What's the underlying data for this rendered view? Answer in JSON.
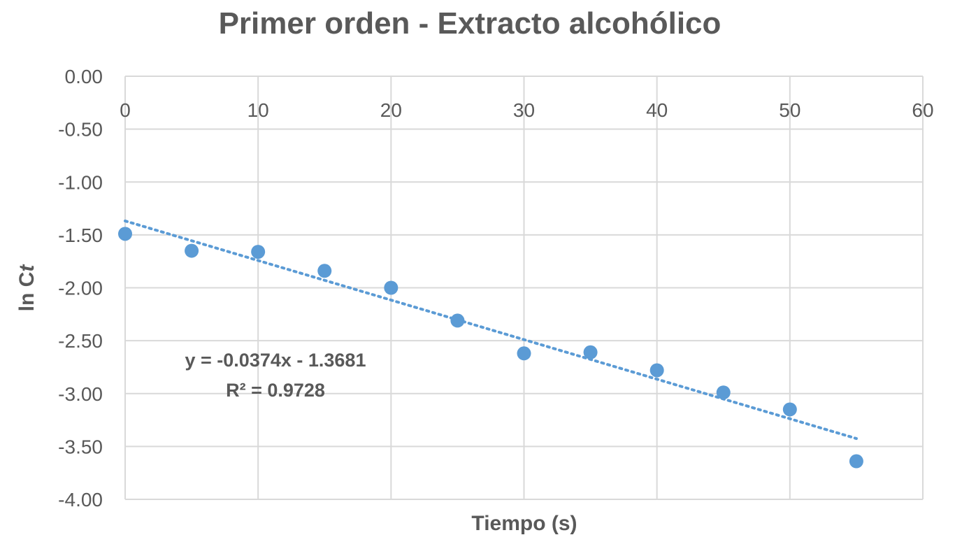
{
  "chart_data": {
    "type": "scatter",
    "title": "Primer orden - Extracto alcohólico",
    "xlabel": "Tiempo (s)",
    "ylabel_main": "ln C",
    "ylabel_italic": "t",
    "xlim": [
      0,
      60
    ],
    "ylim": [
      -4,
      0
    ],
    "x_ticks": [
      "0",
      "10",
      "20",
      "30",
      "40",
      "50",
      "60"
    ],
    "y_ticks": [
      "0.00",
      "-0.50",
      "-1.00",
      "-1.50",
      "-2.00",
      "-2.50",
      "-3.00",
      "-3.50",
      "-4.00"
    ],
    "x_tick_values": [
      0,
      10,
      20,
      30,
      40,
      50,
      60
    ],
    "y_tick_values": [
      0,
      -0.5,
      -1,
      -1.5,
      -2,
      -2.5,
      -3,
      -3.5,
      -4
    ],
    "grid": true,
    "x_axis_position": "top",
    "series": [
      {
        "x": [
          0,
          5,
          10,
          15,
          20,
          25,
          30,
          35,
          40,
          45,
          50,
          55
        ],
        "y": [
          -1.49,
          -1.65,
          -1.66,
          -1.84,
          -2.0,
          -2.31,
          -2.62,
          -2.61,
          -2.78,
          -2.99,
          -3.15,
          -3.64
        ],
        "color": "#5B9BD5"
      }
    ],
    "trendline": {
      "type": "linear",
      "slope": -0.0374,
      "intercept": -1.3681,
      "x_range": [
        0,
        55
      ],
      "color": "#5B9BD5",
      "style": "dotted",
      "equation_label": "y = -0.0374x - 1.3681",
      "r2_label": "R² = 0.9728"
    }
  }
}
